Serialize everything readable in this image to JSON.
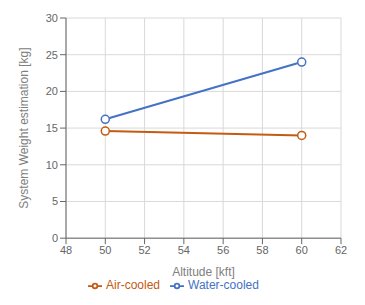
{
  "chart_data": {
    "type": "line",
    "x": [
      50,
      60
    ],
    "series": [
      {
        "name": "Water-cooled",
        "color": "#4472C4",
        "values": [
          16.2,
          24.0
        ],
        "marker": "circle"
      },
      {
        "name": "Air-cooled",
        "color": "#C55A11",
        "values": [
          14.6,
          14.0
        ],
        "marker": "circle"
      }
    ],
    "xlabel": "Altitude [kft]",
    "ylabel": "System Weight estimation [kg]",
    "xlim": [
      48,
      62
    ],
    "ylim": [
      0,
      30
    ],
    "xticks": [
      48,
      50,
      52,
      54,
      56,
      58,
      60,
      62
    ],
    "yticks": [
      0,
      5,
      10,
      15,
      20,
      25,
      30
    ],
    "grid": true,
    "legend": "bottom"
  }
}
